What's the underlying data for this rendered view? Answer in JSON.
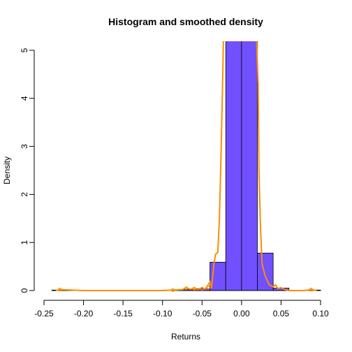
{
  "chart_data": {
    "type": "histogram",
    "title": "Histogram and smoothed density",
    "xlabel": "Returns",
    "ylabel": "Density",
    "xlim": [
      -0.25,
      0.1
    ],
    "ylim": [
      0,
      5
    ],
    "x_ticks": [
      "-0.25",
      "-0.20",
      "-0.15",
      "-0.10",
      "-0.05",
      "0.00",
      "0.05",
      "0.10"
    ],
    "y_ticks": [
      "0",
      "1",
      "2",
      "3",
      "4",
      "5"
    ],
    "bins": [
      {
        "x0": -0.24,
        "x1": -0.22,
        "density": 0.01
      },
      {
        "x0": -0.22,
        "x1": -0.2,
        "density": 0.0
      },
      {
        "x0": -0.2,
        "x1": -0.18,
        "density": 0.0
      },
      {
        "x0": -0.18,
        "x1": -0.16,
        "density": 0.0
      },
      {
        "x0": -0.16,
        "x1": -0.14,
        "density": 0.0
      },
      {
        "x0": -0.14,
        "x1": -0.12,
        "density": 0.0
      },
      {
        "x0": -0.12,
        "x1": -0.1,
        "density": 0.0
      },
      {
        "x0": -0.1,
        "x1": -0.08,
        "density": 0.01
      },
      {
        "x0": -0.08,
        "x1": -0.06,
        "density": 0.02
      },
      {
        "x0": -0.06,
        "x1": -0.04,
        "density": 0.04
      },
      {
        "x0": -0.04,
        "x1": -0.02,
        "density": 0.59
      },
      {
        "x0": -0.02,
        "x1": 0.0,
        "density": 5.2
      },
      {
        "x0": 0.0,
        "x1": 0.02,
        "density": 5.2
      },
      {
        "x0": 0.02,
        "x1": 0.04,
        "density": 0.78
      },
      {
        "x0": 0.04,
        "x1": 0.06,
        "density": 0.05
      },
      {
        "x0": 0.06,
        "x1": 0.08,
        "density": 0.0
      },
      {
        "x0": 0.08,
        "x1": 0.1,
        "density": 0.01
      }
    ],
    "density_curve": {
      "x": [
        -0.235,
        -0.23,
        -0.2,
        -0.15,
        -0.1,
        -0.085,
        -0.075,
        -0.07,
        -0.065,
        -0.06,
        -0.055,
        -0.05,
        -0.046,
        -0.043,
        -0.04,
        -0.038,
        -0.035,
        -0.033,
        -0.03,
        -0.028,
        -0.026,
        -0.024,
        -0.023,
        -0.022,
        -0.02,
        -0.015,
        -0.01,
        0.0,
        0.01,
        0.015,
        0.019,
        0.021,
        0.022,
        0.024,
        0.026,
        0.03,
        0.035,
        0.04,
        0.043,
        0.046,
        0.05,
        0.055,
        0.06,
        0.07,
        0.08,
        0.088,
        0.095
      ],
      "y": [
        0.0,
        0.02,
        0.0,
        0.0,
        0.0,
        0.01,
        0.02,
        0.05,
        0.03,
        0.04,
        0.02,
        0.06,
        0.03,
        0.1,
        0.18,
        0.05,
        0.55,
        0.75,
        0.8,
        1.5,
        2.8,
        4.3,
        5.2,
        5.2,
        5.2,
        5.2,
        5.2,
        5.2,
        5.2,
        5.2,
        5.2,
        4.3,
        2.5,
        1.3,
        0.55,
        0.3,
        0.12,
        0.08,
        0.12,
        0.04,
        0.06,
        0.02,
        0.0,
        0.0,
        0.0,
        0.02,
        0.0
      ]
    },
    "density_markers": [
      {
        "x": -0.23,
        "y": 0.02
      },
      {
        "x": -0.087,
        "y": 0.01
      },
      {
        "x": -0.07,
        "y": 0.05
      },
      {
        "x": -0.06,
        "y": 0.04
      },
      {
        "x": -0.05,
        "y": 0.04
      },
      {
        "x": -0.042,
        "y": 0.06
      },
      {
        "x": 0.088,
        "y": 0.02
      }
    ],
    "colors": {
      "bar_fill": "#7050ff",
      "bar_stroke": "#000000",
      "curve": "#ff8c00"
    },
    "grid": false
  }
}
